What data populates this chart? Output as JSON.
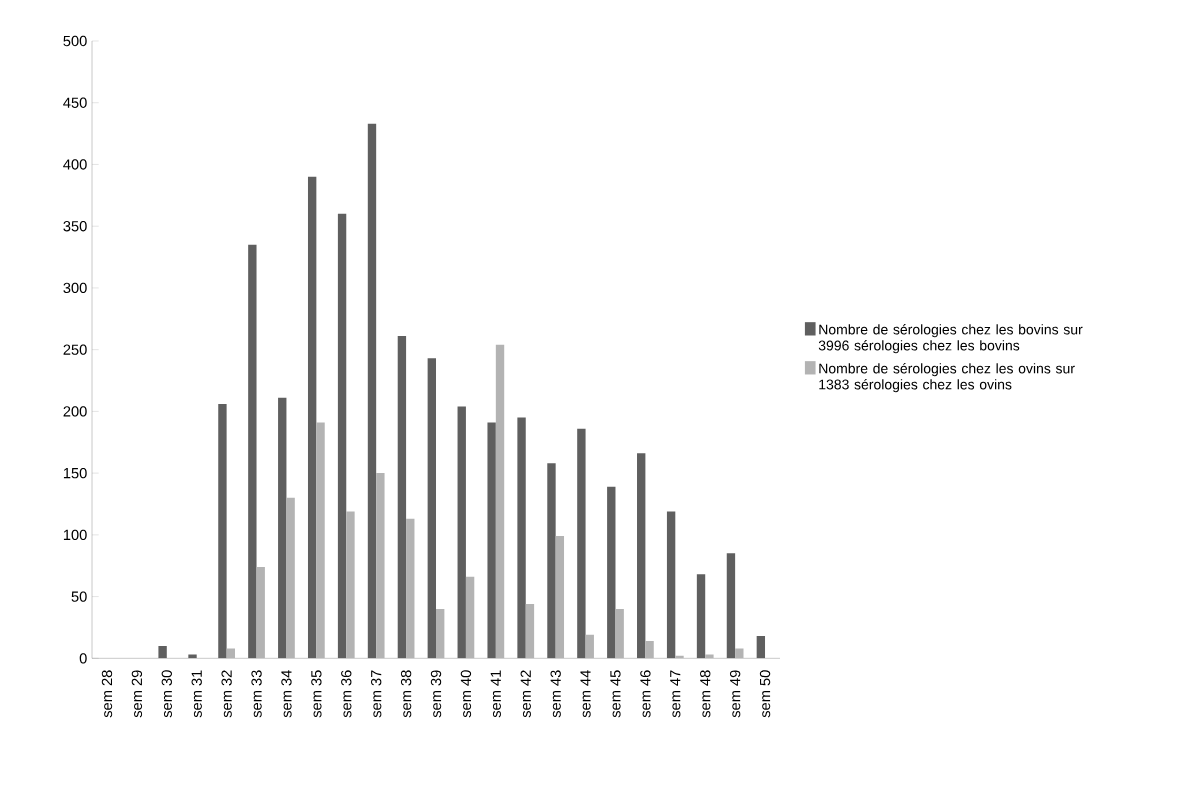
{
  "chart_data": {
    "type": "bar",
    "categories": [
      "sem 28",
      "sem 29",
      "sem 30",
      "sem 31",
      "sem 32",
      "sem 33",
      "sem 34",
      "sem 35",
      "sem 36",
      "sem 37",
      "sem 38",
      "sem 39",
      "sem 40",
      "sem 41",
      "sem 42",
      "sem 43",
      "sem 44",
      "sem 45",
      "sem 46",
      "sem 47",
      "sem 48",
      "sem 49",
      "sem 50"
    ],
    "series": [
      {
        "name": "Nombre de sérologies chez les bovins sur 3996 sérologies chez les bovins",
        "color": "#5f5f5f",
        "values": [
          0,
          0,
          10,
          3,
          206,
          335,
          211,
          390,
          360,
          433,
          261,
          243,
          204,
          191,
          195,
          158,
          186,
          139,
          166,
          119,
          68,
          85,
          18
        ]
      },
      {
        "name": "Nombre de sérologies chez les ovins sur 1383 sérologies chez les ovins",
        "color": "#b3b3b3",
        "values": [
          0,
          0,
          0,
          0,
          8,
          74,
          130,
          191,
          119,
          150,
          113,
          40,
          66,
          254,
          44,
          99,
          19,
          40,
          14,
          2,
          3,
          8,
          0
        ]
      }
    ],
    "ylim": [
      0,
      500
    ],
    "yticks": [
      0,
      50,
      100,
      150,
      200,
      250,
      300,
      350,
      400,
      450,
      500
    ],
    "legend": "right"
  }
}
